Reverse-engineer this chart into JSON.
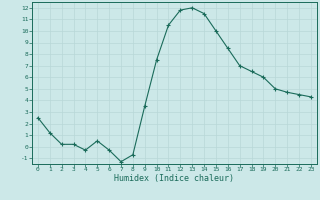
{
  "x": [
    0,
    1,
    2,
    3,
    4,
    5,
    6,
    7,
    8,
    9,
    10,
    11,
    12,
    13,
    14,
    15,
    16,
    17,
    18,
    19,
    20,
    21,
    22,
    23
  ],
  "y": [
    2.5,
    1.2,
    0.2,
    0.2,
    -0.3,
    0.5,
    -0.3,
    -1.3,
    -0.7,
    3.5,
    7.5,
    10.5,
    11.8,
    12.0,
    11.5,
    10.0,
    8.5,
    7.0,
    6.5,
    6.0,
    5.0,
    4.7,
    4.5,
    4.3
  ],
  "xlabel": "Humidex (Indice chaleur)",
  "ylim": [
    -1.5,
    12.5
  ],
  "xlim": [
    -0.5,
    23.5
  ],
  "yticks": [
    -1,
    0,
    1,
    2,
    3,
    4,
    5,
    6,
    7,
    8,
    9,
    10,
    11,
    12
  ],
  "xticks": [
    0,
    1,
    2,
    3,
    4,
    5,
    6,
    7,
    8,
    9,
    10,
    11,
    12,
    13,
    14,
    15,
    16,
    17,
    18,
    19,
    20,
    21,
    22,
    23
  ],
  "line_color": "#1a6b5a",
  "marker_color": "#1a6b5a",
  "bg_color": "#cce8e8",
  "grid_color": "#b8d8d8",
  "label_color": "#1a6b5a",
  "spine_color": "#1a6b5a"
}
